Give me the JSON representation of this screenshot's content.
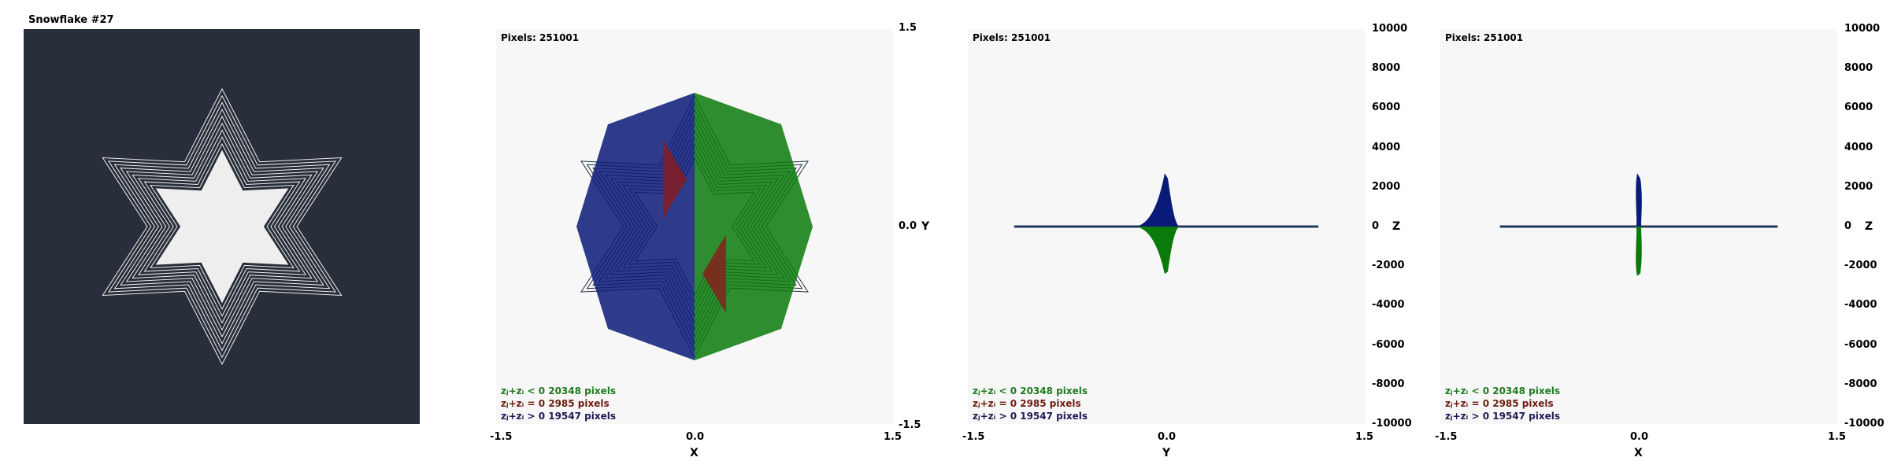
{
  "title": "Snowflake #27",
  "legend": {
    "neg": "zⱼ+zᵢ < 0  20348 pixels",
    "zero": "zⱼ+zᵢ = 0  2985 pixels",
    "pos": "zⱼ+zᵢ > 0  19547 pixels"
  },
  "colors": {
    "background": "#282f3a",
    "flake": "#eeeeee",
    "neg": "#0a7a0a",
    "zero": "#8b1c1c",
    "pos": "#0a1a78",
    "panel": "#f7f7f7"
  },
  "chart_data": [
    {
      "type": "other",
      "description_text": "",
      "title": "Snowflake #27"
    },
    {
      "type": "scatter",
      "pixels_label": "Pixels: 251001",
      "xlabel": "X",
      "ylabel": "Y",
      "xlim": [
        -1.5,
        1.5
      ],
      "ylim": [
        -1.5,
        1.5
      ],
      "x_ticks": [
        "-1.5",
        "0.0",
        "1.5"
      ],
      "y_ticks": [
        "1.5",
        "0.0",
        "-1.5"
      ],
      "series_counts": {
        "neg": 20348,
        "zero": 2985,
        "pos": 19547
      }
    },
    {
      "type": "area",
      "pixels_label": "Pixels: 251001",
      "xlabel": "Y",
      "ylabel": "Z",
      "xlim": [
        -1.5,
        1.5
      ],
      "ylim": [
        -10000,
        10000
      ],
      "x_ticks": [
        "-1.5",
        "0.0",
        "1.5"
      ],
      "y_ticks": [
        "10000",
        "8000",
        "6000",
        "4000",
        "2000",
        "0",
        "-2000",
        "-4000",
        "-6000",
        "-8000",
        "-10000"
      ],
      "baseline_range": [
        -1.15,
        1.15
      ],
      "positive_peak": {
        "x_range": [
          -0.23,
          0.1
        ],
        "max_z": 2700
      },
      "negative_peak": {
        "x_range": [
          -0.23,
          0.1
        ],
        "min_z": -2400
      }
    },
    {
      "type": "area",
      "pixels_label": "Pixels: 251001",
      "xlabel": "X",
      "ylabel": "Z",
      "xlim": [
        -1.5,
        1.5
      ],
      "ylim": [
        -10000,
        10000
      ],
      "x_ticks": [
        "-1.5",
        "0.0",
        "1.5"
      ],
      "y_ticks": [
        "10000",
        "8000",
        "6000",
        "4000",
        "2000",
        "0",
        "-2000",
        "-4000",
        "-6000",
        "-8000",
        "-10000"
      ],
      "baseline_range": [
        -1.05,
        1.05
      ],
      "positive_peak": {
        "x_range": [
          -0.02,
          0.02
        ],
        "max_z": 2700
      },
      "negative_peak": {
        "x_range": [
          -0.02,
          0.02
        ],
        "min_z": -2500
      }
    }
  ]
}
